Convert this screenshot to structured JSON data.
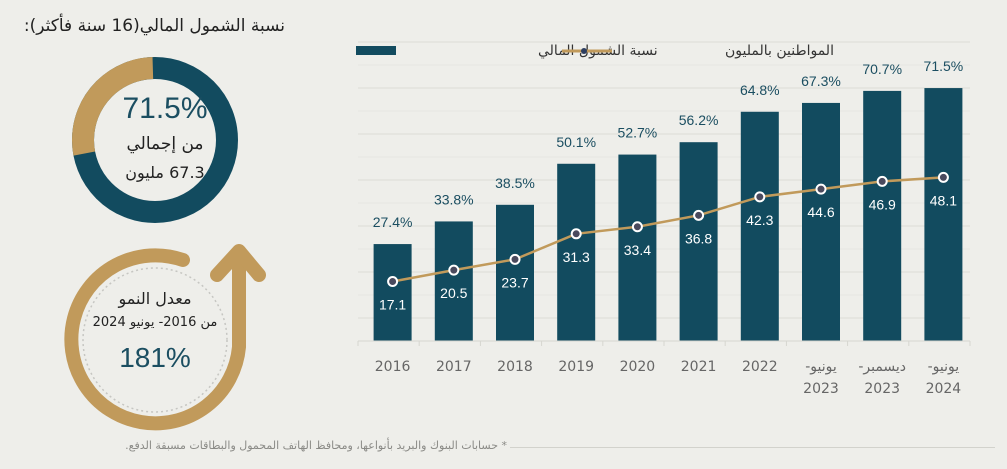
{
  "title": "نسبة الشمول المالي(16 سنة فأكثر):",
  "donut": {
    "percent_label": "71.5%",
    "percent_value": 71.5,
    "line1": "من إجمالي",
    "line2": "67.3 مليون"
  },
  "growth": {
    "line1": "معدل النمو",
    "line2": "من 2016- يونيو 2024",
    "percent_label": "181%"
  },
  "colors": {
    "bar": "#124b5f",
    "line": "#c19a5b",
    "marker_fill": "#4a4a5e",
    "label_dark": "#1b4e61",
    "background": "#eeeeea"
  },
  "chart_data": {
    "type": "bar",
    "title": "",
    "xlabel": "",
    "ylabel": "",
    "categories": [
      "2016",
      "2017",
      "2018",
      "2019",
      "2020",
      "2021",
      "2022",
      "يونيو- 2023",
      "ديسمبر- 2023",
      "يونيو- 2024"
    ],
    "category_lines": [
      [
        "2016"
      ],
      [
        "2017"
      ],
      [
        "2018"
      ],
      [
        "2019"
      ],
      [
        "2020"
      ],
      [
        "2021"
      ],
      [
        "2022"
      ],
      [
        "يونيو-",
        "2023"
      ],
      [
        "ديسمبر-",
        "2023"
      ],
      [
        "يونيو-",
        "2024"
      ]
    ],
    "series": [
      {
        "name": "نسبة الشمول المالي",
        "type": "bar",
        "values": [
          27.4,
          33.8,
          38.5,
          50.1,
          52.7,
          56.2,
          64.8,
          67.3,
          70.7,
          71.5
        ],
        "labels": [
          "27.4%",
          "33.8%",
          "38.5%",
          "50.1%",
          "52.7%",
          "56.2%",
          "64.8%",
          "67.3%",
          "70.7%",
          "71.5%"
        ]
      },
      {
        "name": "المواطنين بالمليون",
        "type": "line",
        "values": [
          17.1,
          20.5,
          23.7,
          31.3,
          33.4,
          36.8,
          42.3,
          44.6,
          46.9,
          48.1
        ],
        "labels": [
          "17.1",
          "20.5",
          "23.7",
          "31.3",
          "33.4",
          "36.8",
          "42.3",
          "44.6",
          "46.9",
          "48.1"
        ]
      }
    ],
    "legend": {
      "position": "top",
      "items": [
        "المواطنين بالمليون",
        "نسبة الشمول المالي"
      ]
    },
    "grid": true
  },
  "footnote": "* حسابات البنوك والبريد بأنواعها، ومحافظ الهاتف المحمول والبطاقات مسبقة الدفع."
}
